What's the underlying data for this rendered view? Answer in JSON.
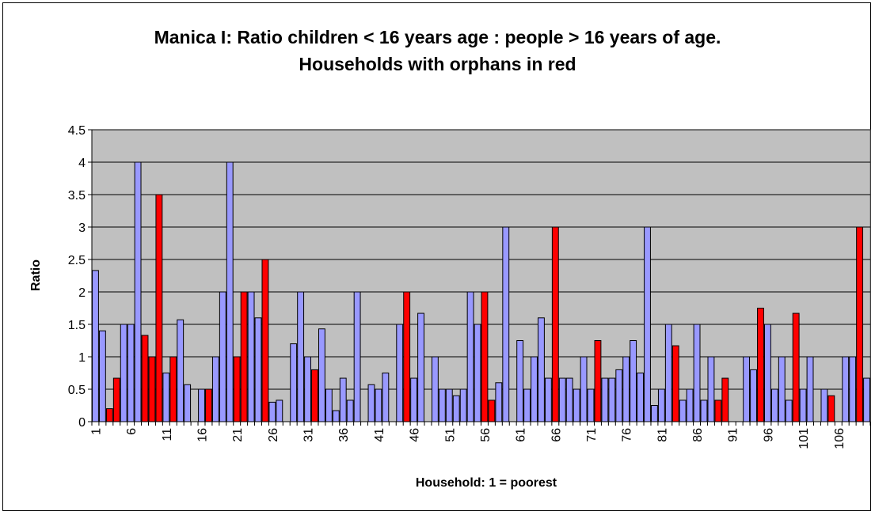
{
  "chart_data": {
    "type": "bar",
    "title_lines": [
      "Manica I: Ratio children < 16 years age : people > 16 years of age.",
      "Households with orphans in red"
    ],
    "xlabel": "Household: 1 = poorest",
    "ylabel": "Ratio",
    "ylim": [
      0,
      4.5
    ],
    "y_ticks": [
      "0",
      "0.5",
      "1",
      "1.5",
      "2",
      "2.5",
      "3",
      "3.5",
      "4",
      "4.5"
    ],
    "x": [
      1,
      2,
      3,
      4,
      5,
      6,
      7,
      8,
      9,
      10,
      11,
      12,
      13,
      14,
      15,
      16,
      17,
      18,
      19,
      20,
      21,
      22,
      23,
      24,
      25,
      26,
      27,
      28,
      29,
      30,
      31,
      32,
      33,
      34,
      35,
      36,
      37,
      38,
      39,
      40,
      41,
      42,
      43,
      44,
      45,
      46,
      47,
      48,
      49,
      50,
      51,
      52,
      53,
      54,
      55,
      56,
      57,
      58,
      59,
      60,
      61,
      62,
      63,
      64,
      65,
      66,
      67,
      68,
      69,
      70,
      71,
      72,
      73,
      74,
      75,
      76,
      77,
      78,
      79,
      80,
      81,
      82,
      83,
      84,
      85,
      86,
      87,
      88,
      89,
      90,
      91,
      92,
      93,
      94,
      95,
      96,
      97,
      98,
      99,
      100,
      101,
      102,
      103,
      104,
      105,
      106,
      107,
      108,
      109,
      110
    ],
    "x_tick_labels": [
      "1",
      "6",
      "11",
      "16",
      "21",
      "26",
      "31",
      "36",
      "41",
      "46",
      "51",
      "56",
      "61",
      "66",
      "71",
      "76",
      "81",
      "86",
      "91",
      "96",
      "101",
      "106"
    ],
    "values": [
      2.33,
      1.4,
      0.2,
      0.67,
      1.5,
      1.5,
      4,
      1.33,
      1,
      3.5,
      0.75,
      1,
      1.57,
      0.57,
      0,
      0.5,
      0.5,
      1,
      2,
      4,
      1,
      2,
      2,
      1.6,
      2.5,
      0.3,
      0.33,
      0,
      1.2,
      2,
      1,
      0.8,
      1.43,
      0.5,
      0.17,
      0.67,
      0.33,
      2,
      0,
      0.57,
      0.5,
      0.75,
      0,
      1.5,
      2,
      0.67,
      1.67,
      0,
      1,
      0.5,
      0.5,
      0.4,
      0.5,
      2,
      1.5,
      2,
      0.33,
      0.6,
      3,
      0,
      1.25,
      0.5,
      1,
      1.6,
      0.67,
      3,
      0.67,
      0.67,
      0.5,
      1,
      0.5,
      1.25,
      0.67,
      0.67,
      0.8,
      1,
      1.25,
      0.75,
      3,
      0.25,
      0.5,
      1.5,
      1.17,
      0.33,
      0.5,
      1.5,
      0.33,
      1,
      0.33,
      0.67,
      0,
      0,
      1,
      0.8,
      1.75,
      1.5,
      0.5,
      1,
      0.33,
      1.67,
      0.5,
      1,
      0,
      0.5,
      0.4,
      0,
      1,
      1,
      3,
      0.67
    ],
    "orphan_households": [
      3,
      4,
      8,
      9,
      10,
      12,
      17,
      21,
      22,
      25,
      32,
      45,
      56,
      57,
      66,
      72,
      83,
      89,
      90,
      95,
      100,
      105,
      109
    ],
    "colors": {
      "default_bar": "#9999ff",
      "orphan_bar": "#ff0000",
      "plot_bg": "#c0c0c0",
      "grid": "#000000",
      "bar_edge": "#000000"
    },
    "grid": true,
    "legend": "none"
  }
}
